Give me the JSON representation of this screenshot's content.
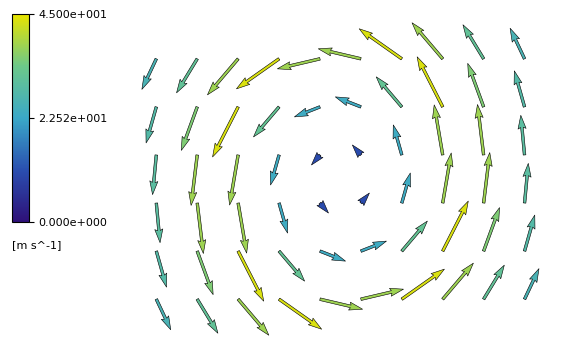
{
  "chart_data": {
    "type": "quiver",
    "x": [
      1,
      2,
      3,
      4,
      5,
      6,
      7,
      8,
      9,
      10
    ],
    "y": [
      0.5,
      1.5,
      2.5,
      3.5,
      4.5,
      5.5
    ],
    "u": [
      [
        12.7,
        18.2,
        27.0,
        37.5,
        37.5,
        37.5,
        37.5,
        27.0,
        18.2,
        12.7
      ],
      [
        9.0,
        14.0,
        22.5,
        22.5,
        22.5,
        22.5,
        22.5,
        22.5,
        14.0,
        9.0
      ],
      [
        3.3,
        5.4,
        7.5,
        7.5,
        7.5,
        7.5,
        7.5,
        7.5,
        5.4,
        3.3
      ],
      [
        -3.3,
        -5.4,
        -7.5,
        -7.5,
        -7.5,
        -7.5,
        -7.5,
        -7.5,
        -5.4,
        -3.3
      ],
      [
        -9.0,
        -14.0,
        -22.5,
        -22.5,
        -22.5,
        -22.5,
        -22.5,
        -22.5,
        -14.0,
        -9.0
      ],
      [
        -12.7,
        -18.2,
        -27.0,
        -37.5,
        -37.5,
        -37.5,
        -37.5,
        -27.0,
        -18.2,
        -12.7
      ]
    ],
    "v": [
      [
        -22.9,
        -25.5,
        -27.0,
        -22.5,
        -7.5,
        7.5,
        22.5,
        27.0,
        25.5,
        22.9
      ],
      [
        -27.0,
        -32.6,
        -37.5,
        -22.5,
        -7.5,
        7.5,
        22.5,
        37.5,
        32.6,
        27.0
      ],
      [
        -29.7,
        -37.8,
        -37.5,
        -22.5,
        -7.5,
        7.5,
        22.5,
        37.5,
        37.8,
        29.7
      ],
      [
        -29.7,
        -37.8,
        -37.5,
        -22.5,
        -7.5,
        7.5,
        22.5,
        37.5,
        37.8,
        29.7
      ],
      [
        -27.0,
        -32.6,
        -37.5,
        -22.5,
        -7.5,
        7.5,
        22.5,
        37.5,
        32.6,
        27.0
      ],
      [
        -22.9,
        -25.5,
        -27.0,
        -22.5,
        -7.5,
        7.5,
        22.5,
        27.0,
        25.5,
        22.9
      ]
    ],
    "xlim": [
      0,
      11
    ],
    "ylim": [
      -0.5,
      6.5
    ],
    "tick_labels": false,
    "colorbar": {
      "label": "[m s^-1]",
      "range": [
        0,
        45
      ],
      "ticks": [
        {
          "value": 0,
          "label": "0.000e+000"
        },
        {
          "value": 22.52,
          "label": "2.252e+001"
        },
        {
          "value": 45,
          "label": "4.500e+001"
        }
      ]
    }
  }
}
